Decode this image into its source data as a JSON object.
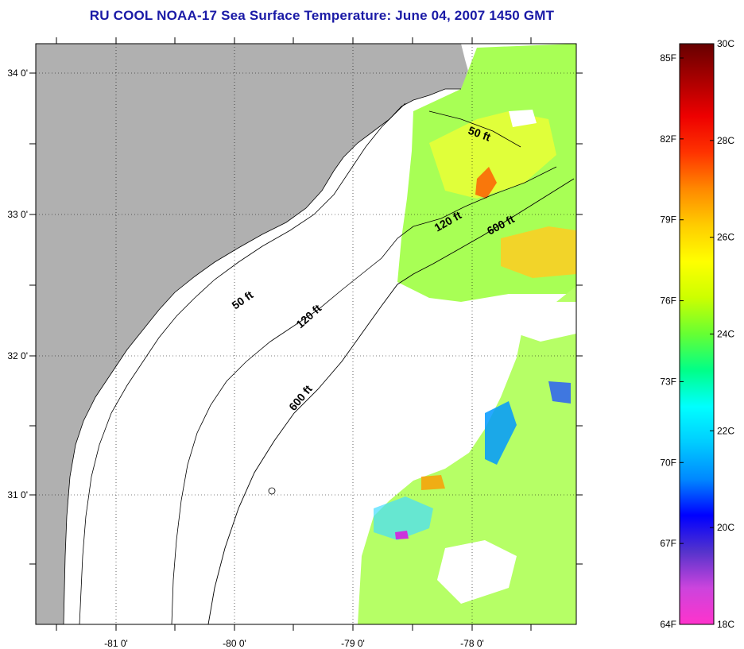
{
  "title": "RU COOL  NOAA-17  Sea Surface Temperature:  June 04, 2007 1450 GMT",
  "map": {
    "lon_labels": [
      "-81 0'",
      "-80 0'",
      "-79 0'",
      "-78 0'"
    ],
    "lat_labels": [
      "34 0'",
      "33 0'",
      "32 0'",
      "31 0'"
    ],
    "contour_labels": [
      "50 ft",
      "120 ft",
      "600 ft",
      "50 ft",
      "120 ft",
      "600 ft"
    ]
  },
  "colorbar": {
    "fahrenheit_labels": [
      "85F",
      "82F",
      "79F",
      "76F",
      "73F",
      "70F",
      "67F",
      "64F"
    ],
    "celsius_labels": [
      "30C",
      "28C",
      "26C",
      "24C",
      "22C",
      "20C",
      "18C"
    ],
    "colors": [
      "#ff33cc",
      "#cc44dd",
      "#5533cc",
      "#0000ff",
      "#0088ff",
      "#00ccff",
      "#00ffff",
      "#00ff88",
      "#66ff33",
      "#ccff00",
      "#ffff00",
      "#ffcc00",
      "#ff8800",
      "#ff3300",
      "#ee0000",
      "#aa0000",
      "#660000"
    ]
  },
  "colors": {
    "land": "#b0b0b0",
    "title": "#1a1aa6",
    "water": "#ffffff"
  }
}
